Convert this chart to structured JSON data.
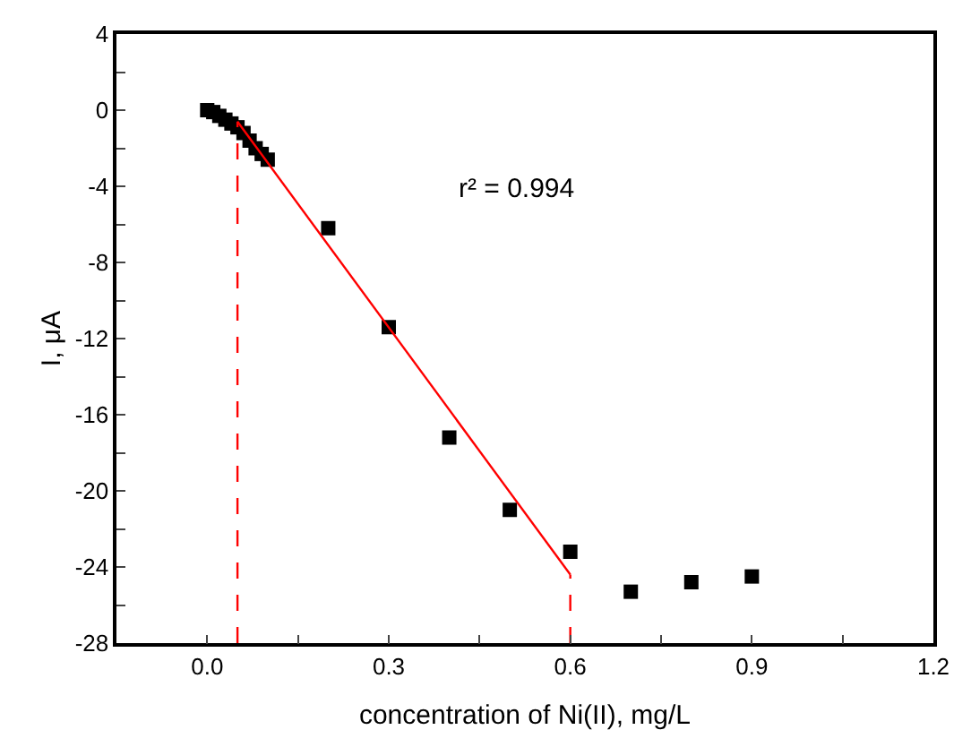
{
  "chart_data": {
    "type": "scatter",
    "xlabel": "concentration of Ni(II), mg/L",
    "ylabel": "I, μA",
    "xlim": [
      -0.15,
      1.2
    ],
    "ylim": [
      -28,
      4
    ],
    "xticks": [
      {
        "value": 0,
        "label": "0.0"
      },
      {
        "value": 0.15,
        "label": null
      },
      0.3,
      {
        "value": 0.45,
        "label": null
      },
      0.6,
      {
        "value": 0.75,
        "label": null
      },
      0.9,
      {
        "value": 1.05,
        "label": null
      },
      1.2
    ],
    "yticks": [
      4,
      {
        "value": 2,
        "label": null
      },
      0,
      {
        "value": -2,
        "label": null
      },
      -4,
      {
        "value": -6,
        "label": null
      },
      -8,
      {
        "value": -10,
        "label": null
      },
      -12,
      {
        "value": -14,
        "label": null
      },
      -16,
      {
        "value": -18,
        "label": null
      },
      -20,
      {
        "value": -22,
        "label": null
      },
      -24,
      {
        "value": -26,
        "label": null
      },
      -28
    ],
    "legend": false,
    "series": [
      {
        "marker": "square",
        "color": "#000000",
        "x": [
          0,
          0.01,
          0.02,
          0.03,
          0.04,
          0.05,
          0.06,
          0.07,
          0.08,
          0.09,
          0.1,
          0.2,
          0.3,
          0.4,
          0.5,
          0.6,
          0.7,
          0.8,
          0.9
        ],
        "values": [
          0,
          -0.1,
          -0.3,
          -0.5,
          -0.7,
          -0.9,
          -1.2,
          -1.6,
          -2.0,
          -2.3,
          -2.6,
          -6.2,
          -11.4,
          -17.2,
          -21,
          -23.2,
          -25.3,
          -24.8,
          -24.5
        ]
      },
      {
        "type": "line",
        "line_style": "solid",
        "marker": "none",
        "color": "#ff0000",
        "x": [
          0.05,
          0.6
        ],
        "values": [
          -0.6,
          -24.4
        ]
      },
      {
        "type": "line",
        "line_style": "dashed",
        "marker": "none",
        "color": "#ff0000",
        "x": [
          0.05,
          0.05
        ],
        "values": [
          -28,
          -0.6
        ]
      },
      {
        "type": "line",
        "line_style": "dashed",
        "marker": "none",
        "color": "#ff0000",
        "x": [
          0.6,
          0.6
        ],
        "values": [
          -28,
          -24.4
        ]
      }
    ],
    "annotations": [
      "r² = 0.994"
    ]
  }
}
